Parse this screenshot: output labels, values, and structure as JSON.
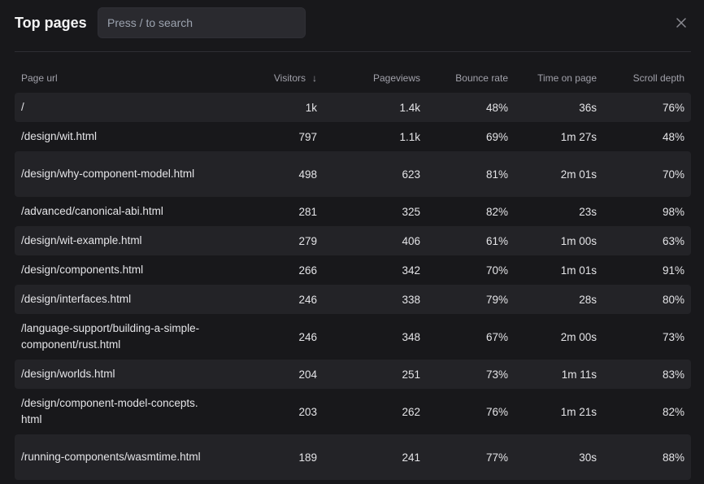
{
  "header": {
    "title": "Top pages",
    "search_placeholder": "Press / to search",
    "close_icon": "close-icon"
  },
  "table": {
    "columns": {
      "url": "Page url",
      "visitors": "Visitors",
      "sort_indicator": "↓",
      "pageviews": "Pageviews",
      "bounce_rate": "Bounce rate",
      "time_on_page": "Time on page",
      "scroll_depth": "Scroll depth"
    },
    "rows": [
      {
        "url": "/",
        "visitors": "1k",
        "pageviews": "1.4k",
        "bounce_rate": "48%",
        "time_on_page": "36s",
        "scroll_depth": "76%"
      },
      {
        "url": "/design/wit.html",
        "visitors": "797",
        "pageviews": "1.1k",
        "bounce_rate": "69%",
        "time_on_page": "1m 27s",
        "scroll_depth": "48%"
      },
      {
        "url": "/design/why-component-model.html",
        "visitors": "498",
        "pageviews": "623",
        "bounce_rate": "81%",
        "time_on_page": "2m 01s",
        "scroll_depth": "70%"
      },
      {
        "url": "/advanced/canonical-abi.html",
        "visitors": "281",
        "pageviews": "325",
        "bounce_rate": "82%",
        "time_on_page": "23s",
        "scroll_depth": "98%"
      },
      {
        "url": "/design/wit-example.html",
        "visitors": "279",
        "pageviews": "406",
        "bounce_rate": "61%",
        "time_on_page": "1m 00s",
        "scroll_depth": "63%"
      },
      {
        "url": "/design/components.html",
        "visitors": "266",
        "pageviews": "342",
        "bounce_rate": "70%",
        "time_on_page": "1m 01s",
        "scroll_depth": "91%"
      },
      {
        "url": "/design/interfaces.html",
        "visitors": "246",
        "pageviews": "338",
        "bounce_rate": "79%",
        "time_on_page": "28s",
        "scroll_depth": "80%"
      },
      {
        "url": "/language-support/building-a-simple-component/rust.html",
        "visitors": "246",
        "pageviews": "348",
        "bounce_rate": "67%",
        "time_on_page": "2m 00s",
        "scroll_depth": "73%"
      },
      {
        "url": "/design/worlds.html",
        "visitors": "204",
        "pageviews": "251",
        "bounce_rate": "73%",
        "time_on_page": "1m 11s",
        "scroll_depth": "83%"
      },
      {
        "url": "/design/component-model-concepts.html",
        "visitors": "203",
        "pageviews": "262",
        "bounce_rate": "76%",
        "time_on_page": "1m 21s",
        "scroll_depth": "82%"
      },
      {
        "url": "/running-components/wasmtime.html",
        "visitors": "189",
        "pageviews": "241",
        "bounce_rate": "77%",
        "time_on_page": "30s",
        "scroll_depth": "88%"
      }
    ]
  }
}
